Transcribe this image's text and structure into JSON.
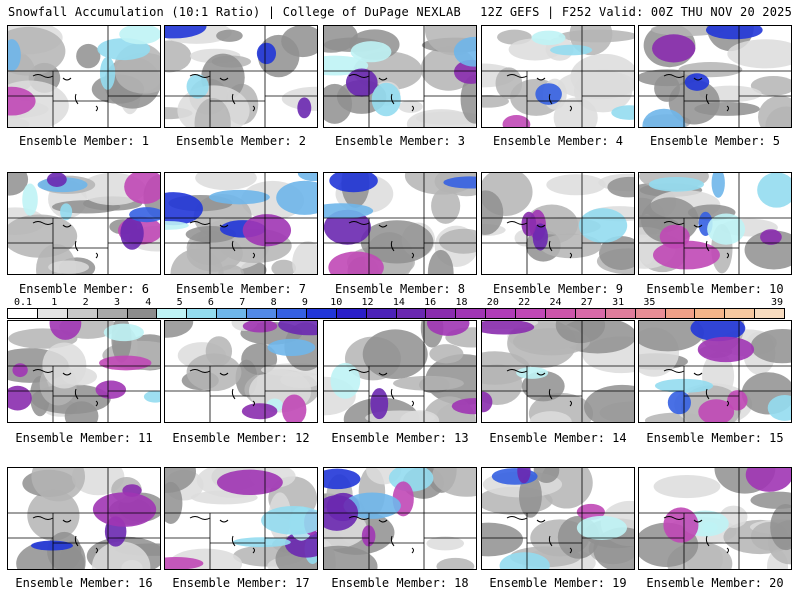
{
  "header": {
    "title_left": "Snowfall Accumulation (10:1 Ratio) | College of DuPage NEXLAB",
    "title_right": "12Z GEFS | F252 Valid: 00Z THU NOV 20 2025"
  },
  "colorbar": {
    "labels": [
      "0.1",
      "1",
      "2",
      "3",
      "4",
      "5",
      "6",
      "7",
      "8",
      "9",
      "10",
      "12",
      "14",
      "16",
      "18",
      "20",
      "22",
      "24",
      "27",
      "31",
      "35",
      "39"
    ],
    "colors": [
      "#ffffff",
      "#e4e4e4",
      "#c8c8c8",
      "#a8a8a8",
      "#8c8c8c",
      "#bff3f5",
      "#94dcef",
      "#6fb6ea",
      "#5289e6",
      "#3560e2",
      "#2136d8",
      "#2a1ec8",
      "#4c22b8",
      "#6a28b0",
      "#8a2cae",
      "#a035b4",
      "#b03cb8",
      "#c048b6",
      "#cc55aa",
      "#d86aa8",
      "#e07d9c",
      "#e88e96",
      "#f0a088",
      "#f4b58a",
      "#f6c8a0",
      "#f8dcc0"
    ]
  },
  "members": [
    {
      "label": "Ensemble Member: 1"
    },
    {
      "label": "Ensemble Member: 2"
    },
    {
      "label": "Ensemble Member: 3"
    },
    {
      "label": "Ensemble Member: 4"
    },
    {
      "label": "Ensemble Member: 5"
    },
    {
      "label": "Ensemble Member: 6"
    },
    {
      "label": "Ensemble Member: 7"
    },
    {
      "label": "Ensemble Member: 8"
    },
    {
      "label": "Ensemble Member: 9"
    },
    {
      "label": "Ensemble Member: 10"
    },
    {
      "label": "Ensemble Member: 11"
    },
    {
      "label": "Ensemble Member: 12"
    },
    {
      "label": "Ensemble Member: 13"
    },
    {
      "label": "Ensemble Member: 14"
    },
    {
      "label": "Ensemble Member: 15"
    },
    {
      "label": "Ensemble Member: 16"
    },
    {
      "label": "Ensemble Member: 17"
    },
    {
      "label": "Ensemble Member: 18"
    },
    {
      "label": "Ensemble Member: 19"
    },
    {
      "label": "Ensemble Member: 20"
    }
  ]
}
